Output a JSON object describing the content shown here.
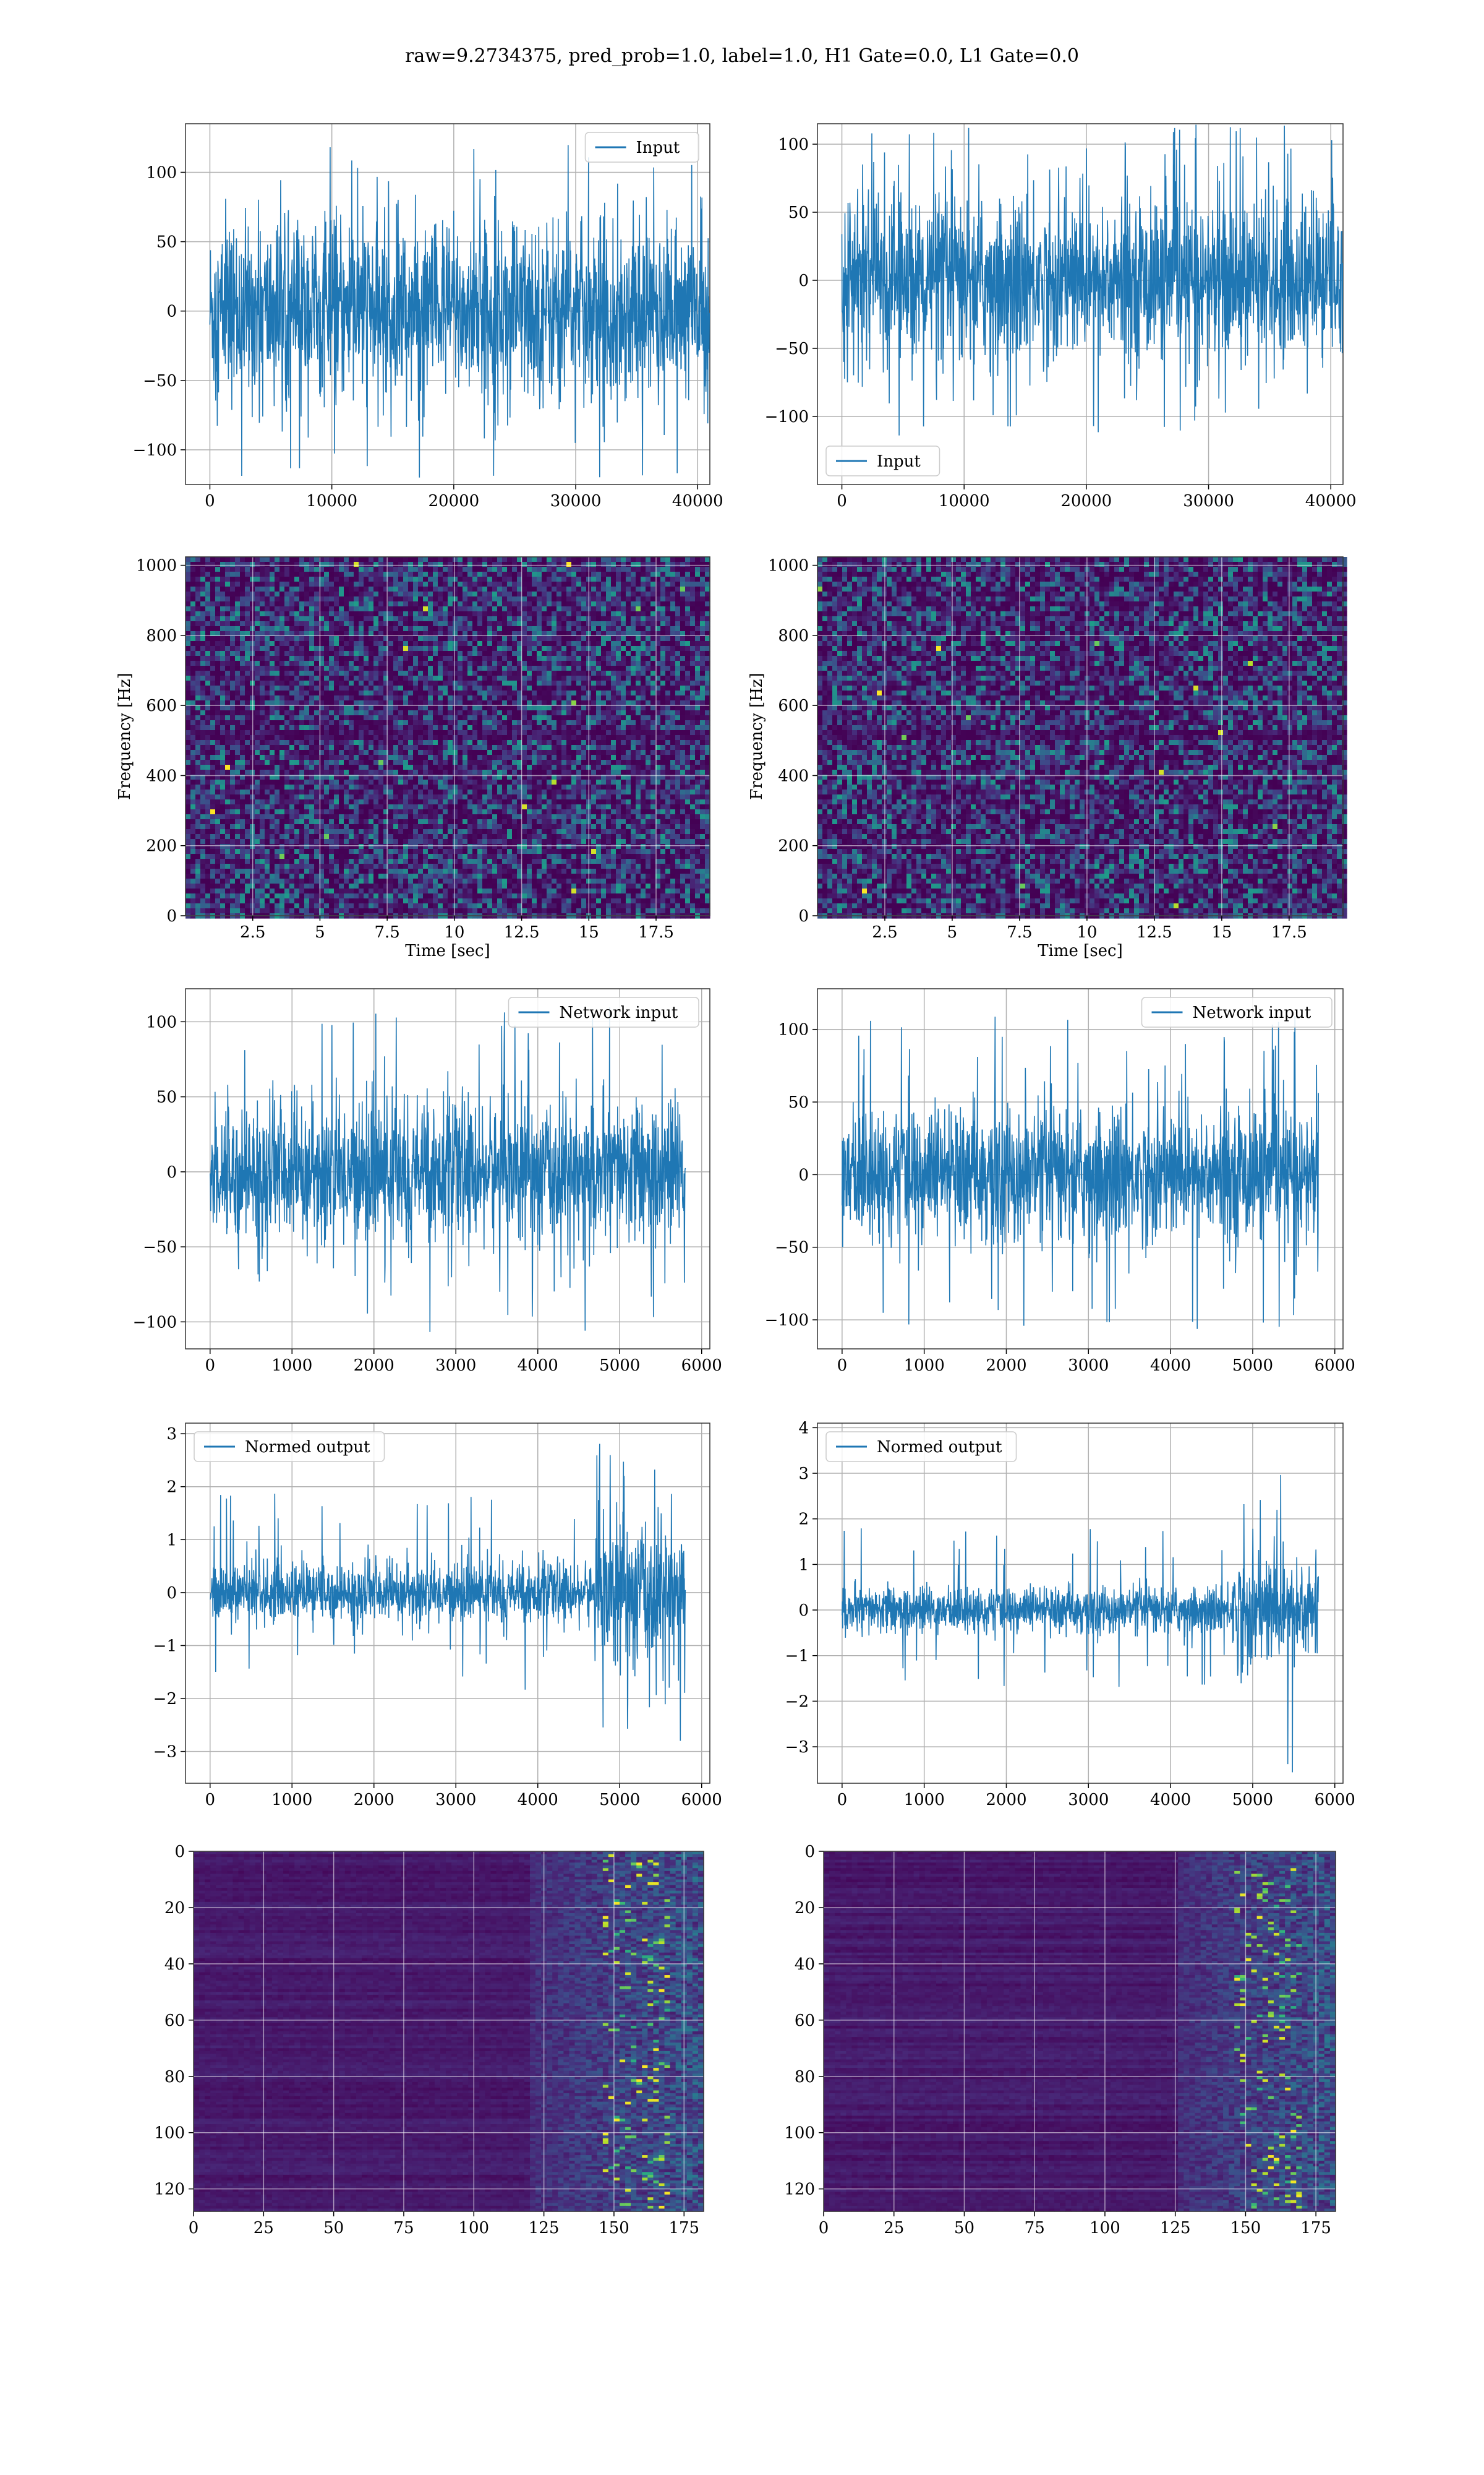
{
  "figure": {
    "title": "raw=9.2734375, pred_prob=1.0, label=1.0, H1 Gate=0.0, L1 Gate=0.0"
  },
  "colors": {
    "line": "#1f77b4",
    "grid": "#b0b0b0",
    "frame": "#000000"
  },
  "chart_data": [
    {
      "type": "line",
      "id": "input-h1",
      "series": [
        {
          "name": "Input",
          "amplitude": 70,
          "spike_max": 120
        }
      ],
      "xlim": [
        -2000,
        41000
      ],
      "xticks": [
        0,
        10000,
        20000,
        30000,
        40000
      ],
      "ylim": [
        -125,
        135
      ],
      "yticks": [
        -100,
        -50,
        0,
        50,
        100
      ],
      "x_extent": [
        0,
        40960
      ],
      "legend": "upper right",
      "grid": true
    },
    {
      "type": "line",
      "id": "input-l1",
      "series": [
        {
          "name": "Input",
          "amplitude": 65,
          "spike_max": 115
        }
      ],
      "xlim": [
        -2000,
        41000
      ],
      "xticks": [
        0,
        10000,
        20000,
        30000,
        40000
      ],
      "ylim": [
        -150,
        115
      ],
      "yticks": [
        -100,
        -50,
        0,
        50,
        100
      ],
      "x_extent": [
        0,
        40960
      ],
      "legend": "lower left",
      "grid": true
    },
    {
      "type": "heatmap",
      "id": "spectrogram-h1",
      "xlabel": "Time [sec]",
      "ylabel": "Frequency [Hz]",
      "xlim": [
        0,
        19.5
      ],
      "xticks": [
        2.5,
        5.0,
        7.5,
        10.0,
        12.5,
        15.0,
        17.5
      ],
      "ylim": [
        0,
        1024
      ],
      "yticks": [
        0,
        200,
        400,
        600,
        800,
        1000
      ],
      "colormap": "viridis",
      "grid": true
    },
    {
      "type": "heatmap",
      "id": "spectrogram-l1",
      "xlabel": "Time [sec]",
      "ylabel": "Frequency [Hz]",
      "xlim": [
        0,
        19.5
      ],
      "xticks": [
        2.5,
        5.0,
        7.5,
        10.0,
        12.5,
        15.0,
        17.5
      ],
      "ylim": [
        0,
        1024
      ],
      "yticks": [
        0,
        200,
        400,
        600,
        800,
        1000
      ],
      "colormap": "viridis",
      "grid": true
    },
    {
      "type": "line",
      "id": "network-input-h1",
      "series": [
        {
          "name": "Network input",
          "amplitude": 50,
          "spike_max": 110
        }
      ],
      "xlim": [
        -300,
        6100
      ],
      "xticks": [
        0,
        1000,
        2000,
        3000,
        4000,
        5000,
        6000
      ],
      "ylim": [
        -118,
        122
      ],
      "yticks": [
        -100,
        -50,
        0,
        50,
        100
      ],
      "x_extent": [
        0,
        5800
      ],
      "legend": "upper right",
      "grid": true
    },
    {
      "type": "line",
      "id": "network-input-l1",
      "series": [
        {
          "name": "Network input",
          "amplitude": 50,
          "spike_max": 110
        }
      ],
      "xlim": [
        -300,
        6100
      ],
      "xticks": [
        0,
        1000,
        2000,
        3000,
        4000,
        5000,
        6000
      ],
      "ylim": [
        -120,
        128
      ],
      "yticks": [
        -100,
        -50,
        0,
        50,
        100
      ],
      "x_extent": [
        0,
        5800
      ],
      "legend": "upper right",
      "grid": true
    },
    {
      "type": "line",
      "id": "normed-output-h1",
      "series": [
        {
          "name": "Normed output",
          "amplitude": 0.6,
          "spike_max": 1.9,
          "burst_start": 4700,
          "burst_amplitude": 1.5,
          "burst_max": 2.9
        }
      ],
      "xlim": [
        -300,
        6100
      ],
      "xticks": [
        0,
        1000,
        2000,
        3000,
        4000,
        5000,
        6000
      ],
      "ylim": [
        -3.6,
        3.2
      ],
      "yticks": [
        -3,
        -2,
        -1,
        0,
        1,
        2,
        3
      ],
      "x_extent": [
        0,
        5800
      ],
      "legend": "upper left",
      "grid": true
    },
    {
      "type": "line",
      "id": "normed-output-l1",
      "series": [
        {
          "name": "Normed output",
          "amplitude": 0.55,
          "spike_max": 1.8,
          "burst_start": 4750,
          "burst_amplitude": 1.4,
          "burst_max": 3.7
        }
      ],
      "xlim": [
        -300,
        6100
      ],
      "xticks": [
        0,
        1000,
        2000,
        3000,
        4000,
        5000,
        6000
      ],
      "ylim": [
        -3.8,
        4.1
      ],
      "yticks": [
        -3,
        -2,
        -1,
        0,
        1,
        2,
        3,
        4
      ],
      "x_extent": [
        0,
        5800
      ],
      "legend": "upper left",
      "grid": true
    },
    {
      "type": "heatmap",
      "id": "feature-map-h1",
      "xlim": [
        0,
        182
      ],
      "xticks": [
        0,
        25,
        50,
        75,
        100,
        125,
        150,
        175
      ],
      "ylim": [
        128,
        0
      ],
      "yticks": [
        0,
        20,
        40,
        60,
        80,
        100,
        120
      ],
      "colormap": "viridis",
      "active_from": 120,
      "grid": true
    },
    {
      "type": "heatmap",
      "id": "feature-map-l1",
      "xlim": [
        0,
        182
      ],
      "xticks": [
        0,
        25,
        50,
        75,
        100,
        125,
        150,
        175
      ],
      "ylim": [
        128,
        0
      ],
      "yticks": [
        0,
        20,
        40,
        60,
        80,
        100,
        120
      ],
      "colormap": "viridis",
      "active_from": 125,
      "grid": true
    }
  ]
}
